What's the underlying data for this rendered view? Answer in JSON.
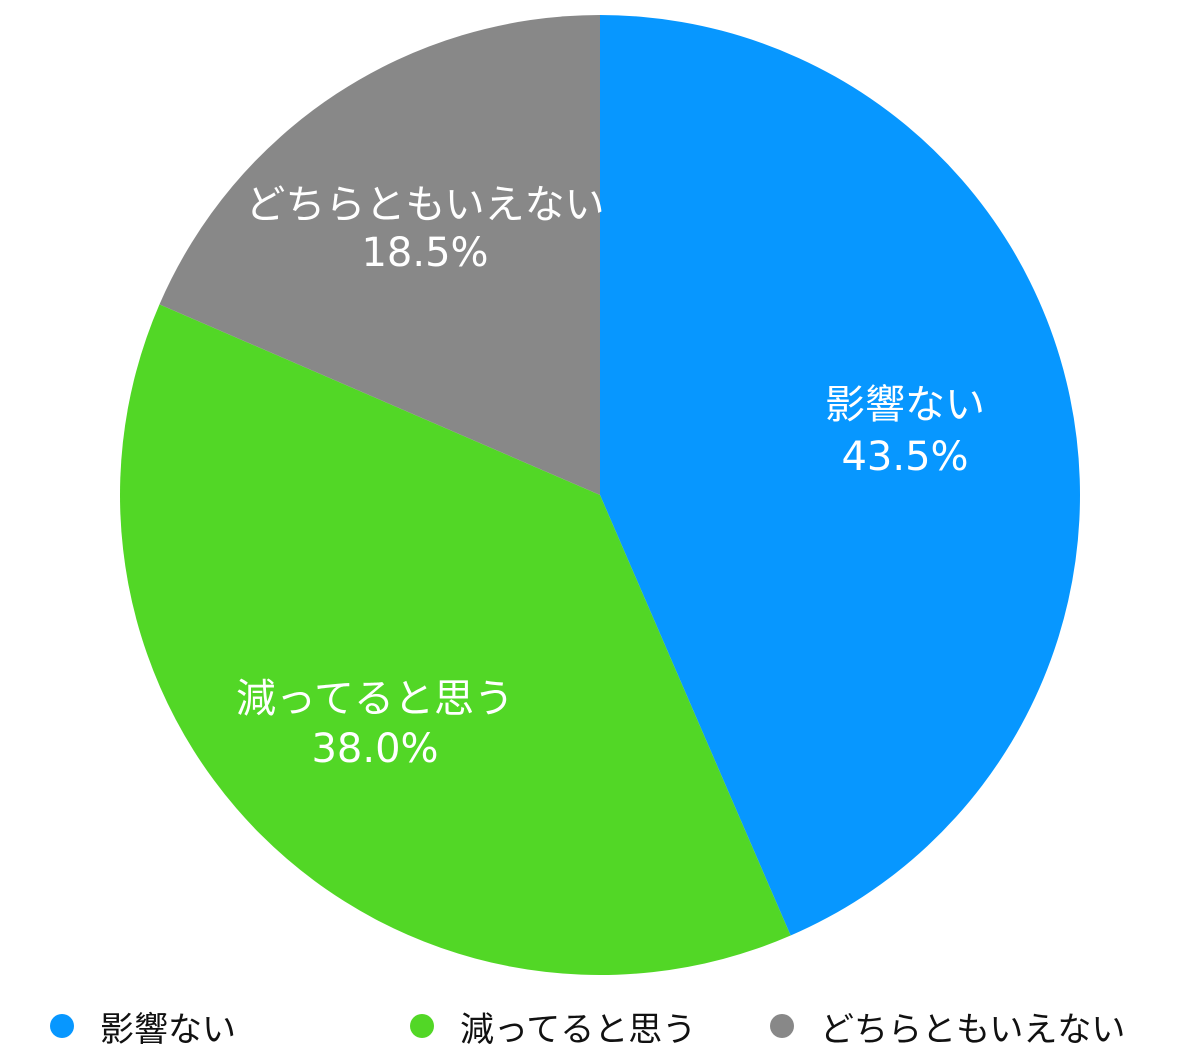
{
  "chart_data": {
    "type": "pie",
    "title": "",
    "series": [
      {
        "categories": [
          "影響ない",
          "減ってると思う",
          "どちらともいえない"
        ],
        "values": [
          43.5,
          38.0,
          18.5
        ],
        "labels": [
          "43.5%",
          "38.0%",
          "18.5%"
        ],
        "colors": [
          "#0797FF",
          "#52D726",
          "#888888"
        ]
      }
    ],
    "start_angle": "12 o'clock",
    "direction": "clockwise",
    "legend": {
      "placement": "bottom",
      "items": [
        "影響ない",
        "減ってると思う",
        "どちらともいえない"
      ]
    }
  }
}
